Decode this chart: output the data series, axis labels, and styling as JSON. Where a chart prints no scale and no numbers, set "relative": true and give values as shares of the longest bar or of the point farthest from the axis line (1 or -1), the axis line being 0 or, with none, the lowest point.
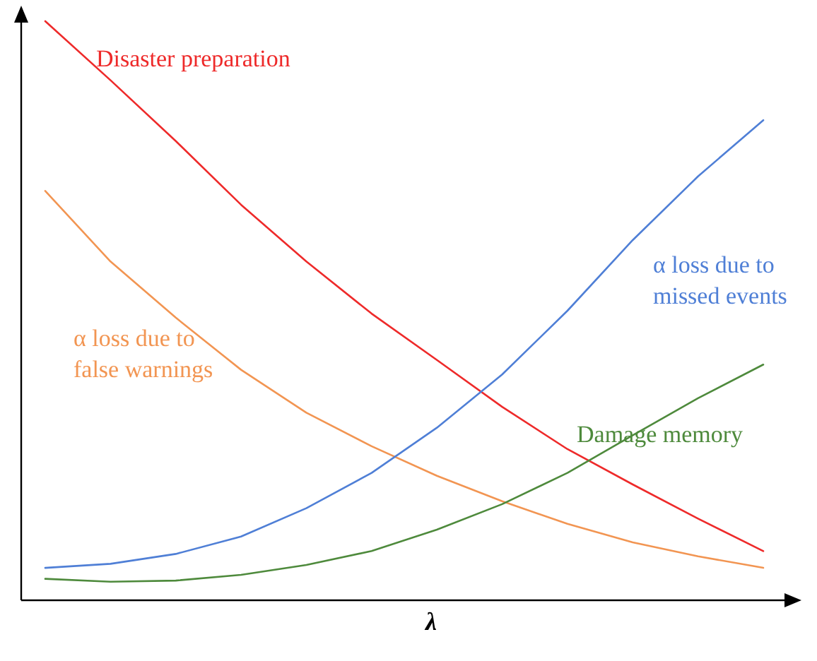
{
  "chart_data": {
    "type": "line",
    "relative": true,
    "xlabel": "λ",
    "marker": "none",
    "line_style": "solid",
    "categories": [
      null,
      null,
      null,
      null,
      null,
      null,
      null,
      null,
      null,
      null,
      null,
      null
    ],
    "series": [
      {
        "name": "Disaster preparation",
        "color": "#ee2a2a",
        "values": [
          1.0,
          0.898,
          0.793,
          0.683,
          0.585,
          0.495,
          0.415,
          0.334,
          0.261,
          0.2,
          0.141,
          0.085
        ]
      },
      {
        "name": "α loss due to\nfalse warnings",
        "color": "#f29552",
        "values": [
          0.707,
          0.585,
          0.488,
          0.398,
          0.324,
          0.266,
          0.215,
          0.171,
          0.132,
          0.1,
          0.076,
          0.056
        ]
      },
      {
        "name": "α loss due to\nmissed events",
        "color": "#4f7fd6",
        "values": [
          0.056,
          0.063,
          0.08,
          0.11,
          0.159,
          0.22,
          0.298,
          0.39,
          0.5,
          0.622,
          0.732,
          0.829
        ]
      },
      {
        "name": "Damage memory",
        "color": "#4e8a3c",
        "values": [
          0.037,
          0.032,
          0.034,
          0.044,
          0.061,
          0.085,
          0.122,
          0.166,
          0.22,
          0.285,
          0.349,
          0.407
        ]
      }
    ]
  }
}
